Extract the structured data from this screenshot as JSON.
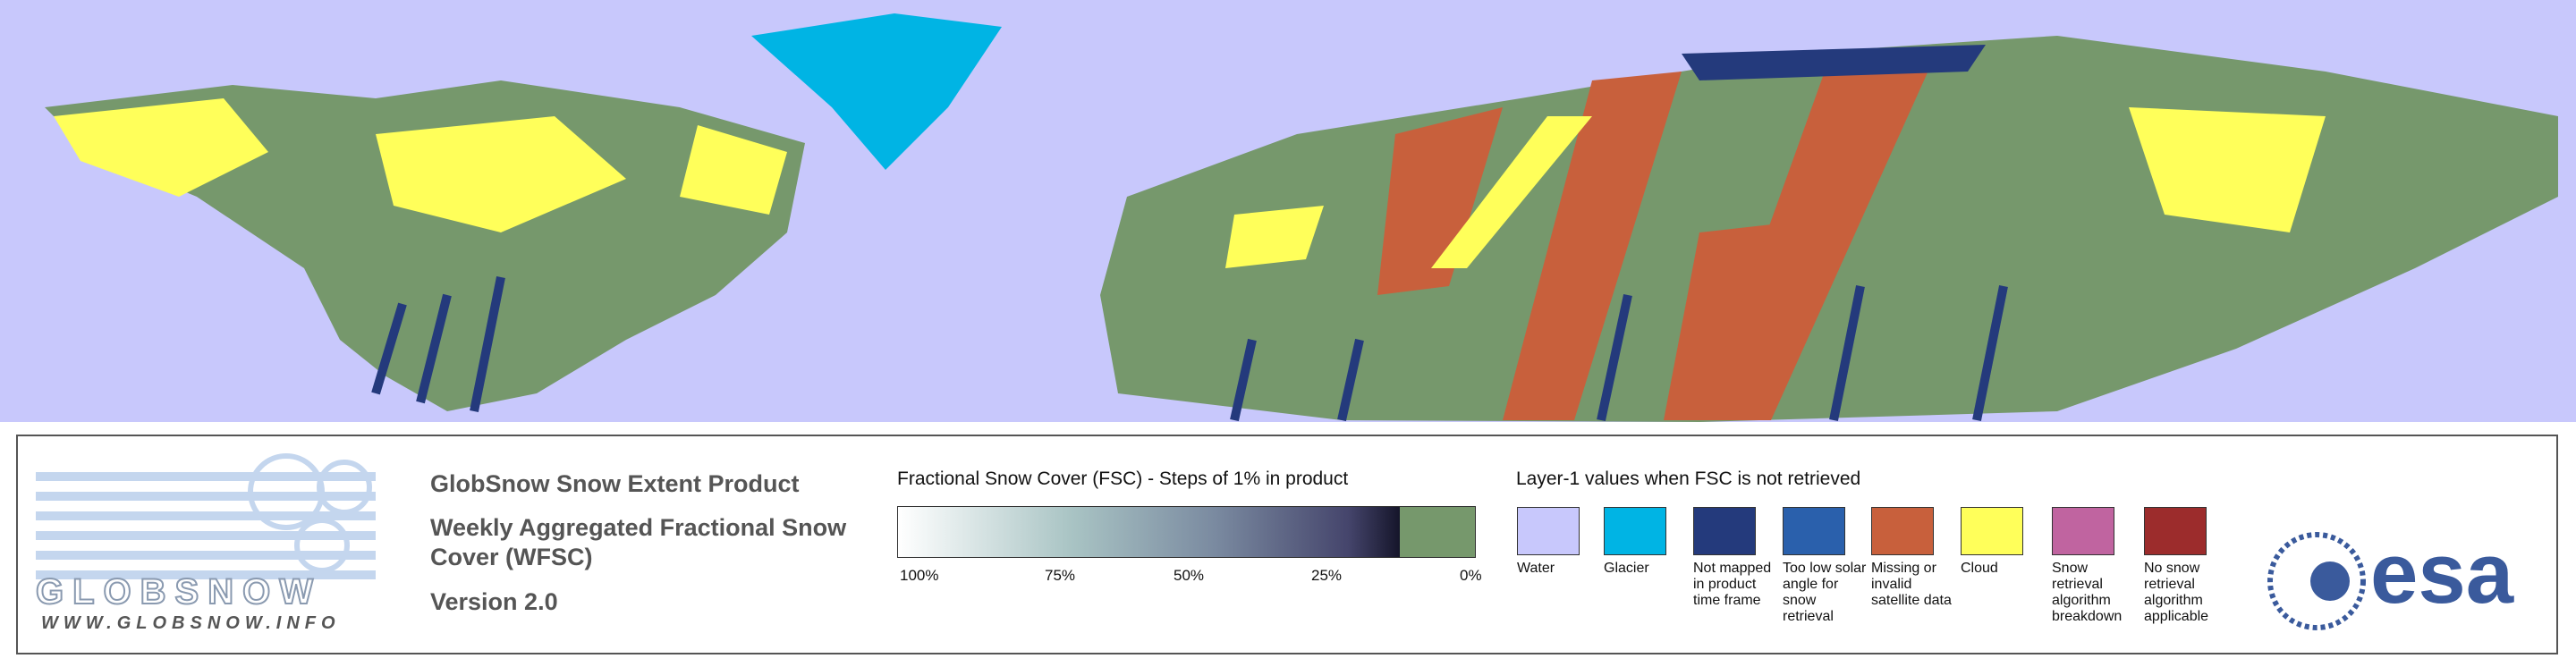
{
  "header": {
    "title": "GlobSnow Snow Extent Product",
    "subtitle": "Weekly Aggregated Fractional Snow Cover (WFSC)",
    "version": "Version 2.0"
  },
  "logo": {
    "name": "GLOBSNOW",
    "url": "WWW.GLOBSNOW.INFO",
    "agency": "esa"
  },
  "fsc_legend": {
    "title": "Fractional Snow Cover (FSC) - Steps of 1% in product",
    "tick_labels": [
      "100%",
      "75%",
      "50%",
      "25%",
      "0%"
    ]
  },
  "layer_legend": {
    "title": "Layer-1 values when FSC is not retrieved",
    "items": [
      {
        "label": "Water",
        "color": "#c8c8fc"
      },
      {
        "label": "Glacier",
        "color": "#00b4e4"
      },
      {
        "label": "Not mapped in product time frame",
        "color": "#243a7c"
      },
      {
        "label": "Too low solar angle for snow retrieval",
        "color": "#2a60ac"
      },
      {
        "label": "Missing or invalid satellite data",
        "color": "#c8603c"
      },
      {
        "label": "Cloud",
        "color": "#ffff5a"
      },
      {
        "label": "Snow retrieval algorithm breakdown",
        "color": "#c064a0"
      },
      {
        "label": "No snow retrieval algorithm applicable",
        "color": "#9c2c2c"
      }
    ]
  }
}
